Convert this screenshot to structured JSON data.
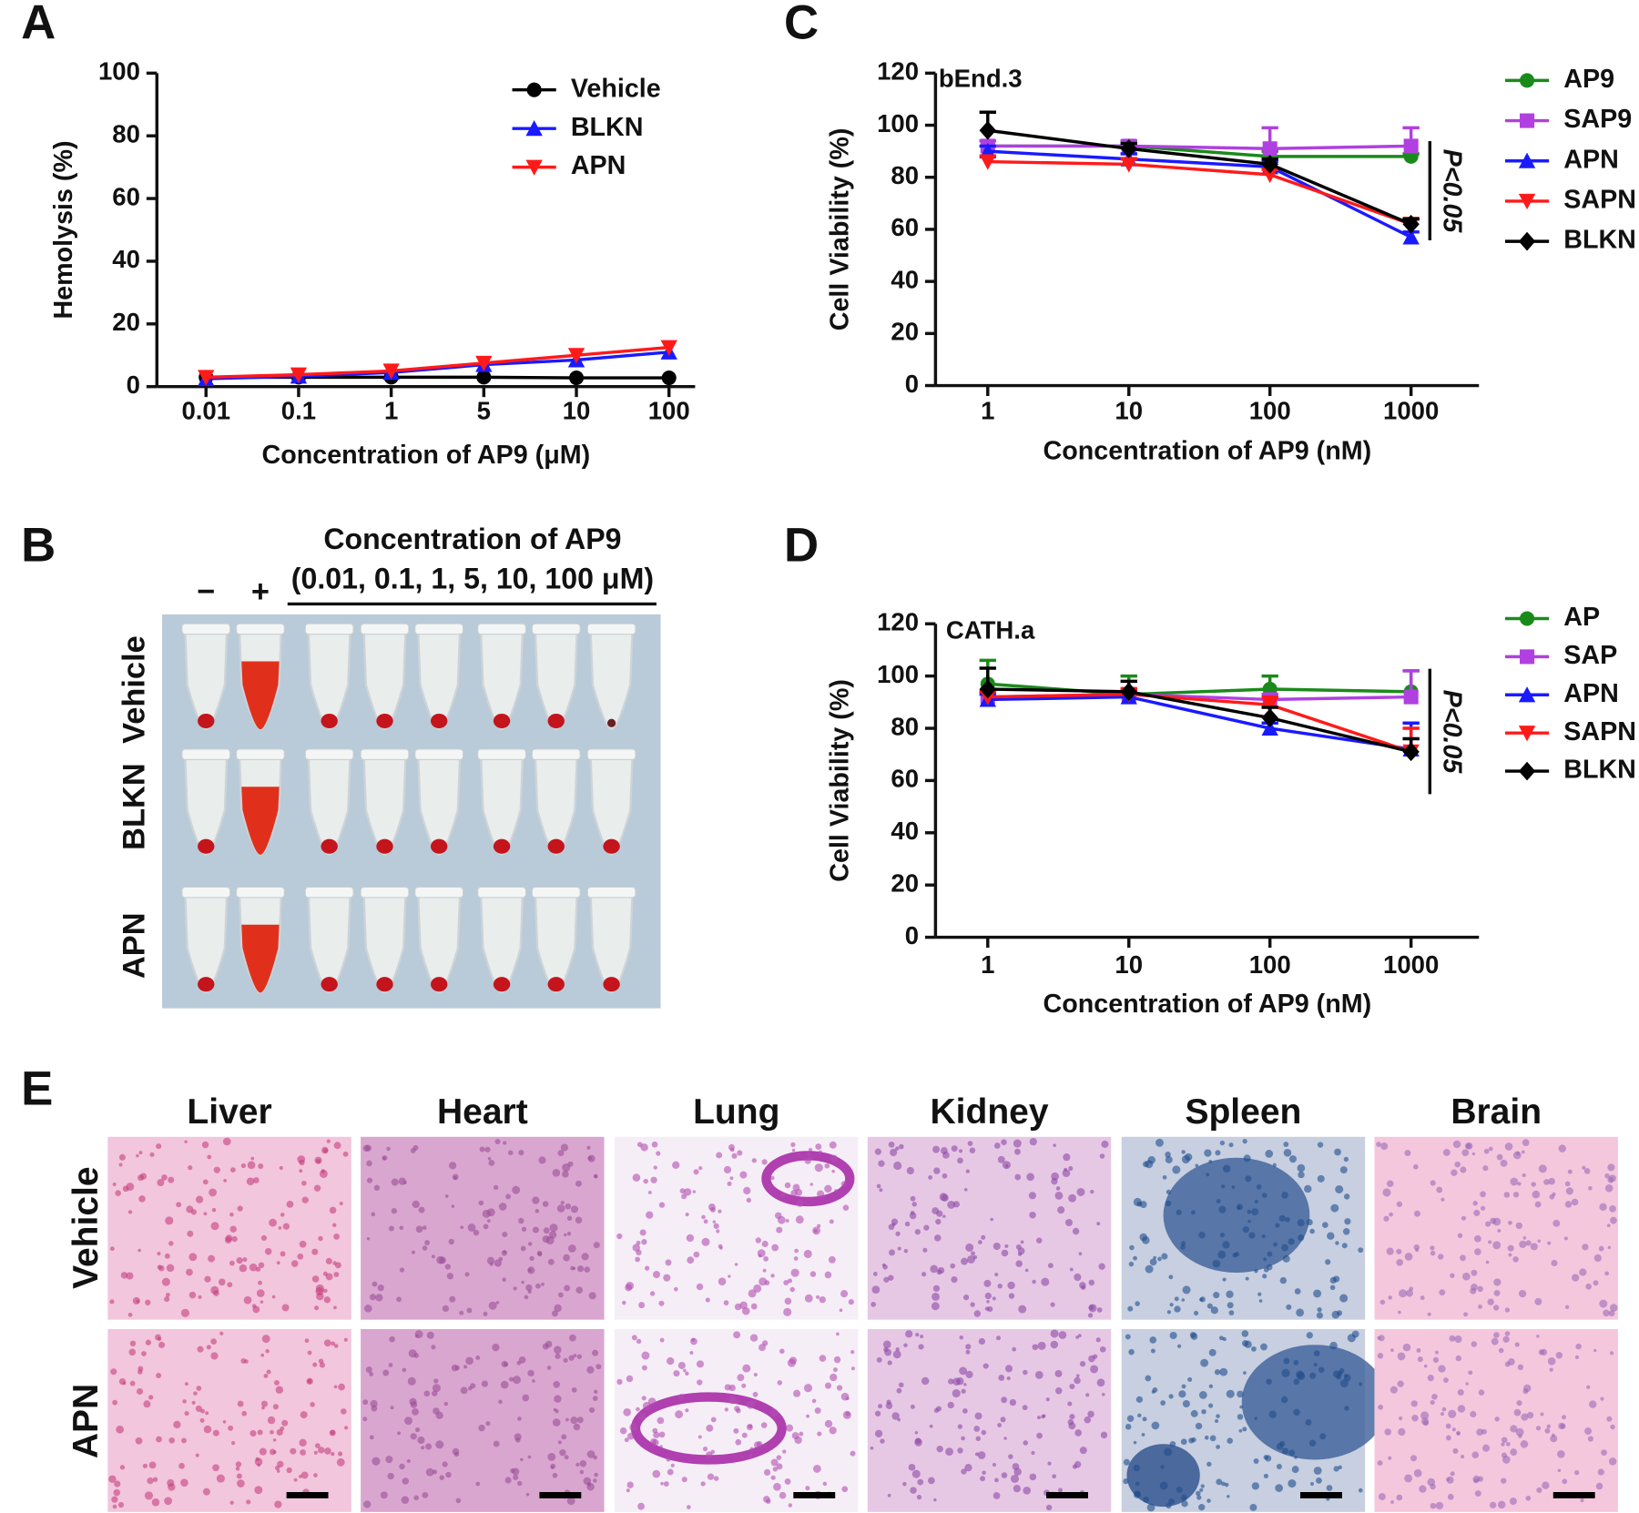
{
  "chart_data": [
    {
      "panel": "A",
      "type": "line",
      "y_label": "Hemolysis (%)",
      "x_label": "Concentration of AP9 (μM)",
      "categories": [
        "0.01",
        "0.1",
        "1",
        "5",
        "10",
        "100"
      ],
      "ylim": [
        0,
        100
      ],
      "yticks": [
        0,
        20,
        40,
        60,
        80,
        100
      ],
      "series": [
        {
          "name": "Vehicle",
          "color": "#000000",
          "marker": "circle",
          "values": [
            3,
            3,
            3,
            3,
            2.8,
            2.8
          ]
        },
        {
          "name": "BLKN",
          "color": "#1a1aff",
          "marker": "triangle-up",
          "values": [
            2.5,
            3.3,
            4.5,
            7,
            8.5,
            11
          ]
        },
        {
          "name": "APN",
          "color": "#ff1a1a",
          "marker": "triangle-down",
          "values": [
            3,
            3.8,
            5,
            7.5,
            10,
            12.5
          ]
        }
      ]
    },
    {
      "panel": "C",
      "type": "line",
      "annotation": "bEnd.3",
      "significance": "P<0.05",
      "y_label": "Cell Viability (%)",
      "x_label": "Concentration of AP9 (nM)",
      "categories": [
        "1",
        "10",
        "100",
        "1000"
      ],
      "ylim": [
        0,
        120
      ],
      "yticks": [
        0,
        20,
        40,
        60,
        80,
        100,
        120
      ],
      "series": [
        {
          "name": "AP9",
          "color": "#1a8a1a",
          "marker": "circle",
          "values": [
            92,
            92,
            88,
            88
          ],
          "errors": [
            2,
            2,
            2,
            1
          ]
        },
        {
          "name": "SAP9",
          "color": "#b040e0",
          "marker": "square",
          "values": [
            92,
            92,
            91,
            92
          ],
          "errors": [
            2,
            2,
            8,
            7
          ]
        },
        {
          "name": "APN",
          "color": "#1a1aff",
          "marker": "triangle-up",
          "values": [
            90,
            87,
            84,
            57
          ],
          "errors": [
            2,
            2,
            2,
            2
          ]
        },
        {
          "name": "SAPN",
          "color": "#ff1a1a",
          "marker": "triangle-down",
          "values": [
            86,
            85,
            81,
            62
          ],
          "errors": [
            2,
            2,
            2,
            2
          ]
        },
        {
          "name": "BLKN",
          "color": "#000000",
          "marker": "diamond",
          "values": [
            98,
            91,
            85,
            62
          ],
          "errors": [
            7,
            2,
            2,
            2
          ]
        }
      ]
    },
    {
      "panel": "D",
      "type": "line",
      "annotation": "CATH.a",
      "significance": "P<0.05",
      "y_label": "Cell Viability (%)",
      "x_label": "Concentration of AP9 (nM)",
      "categories": [
        "1",
        "10",
        "100",
        "1000"
      ],
      "ylim": [
        0,
        120
      ],
      "yticks": [
        0,
        20,
        40,
        60,
        80,
        100,
        120
      ],
      "series": [
        {
          "name": "AP",
          "color": "#1a8a1a",
          "marker": "circle",
          "values": [
            97,
            93,
            95,
            94
          ],
          "errors": [
            9,
            7,
            5,
            8
          ]
        },
        {
          "name": "SAP",
          "color": "#b040e0",
          "marker": "square",
          "values": [
            92,
            93,
            91,
            92
          ],
          "errors": [
            2,
            2,
            2,
            10
          ]
        },
        {
          "name": "APN",
          "color": "#1a1aff",
          "marker": "triangle-up",
          "values": [
            91,
            92,
            80,
            72
          ],
          "errors": [
            2,
            2,
            2,
            10
          ]
        },
        {
          "name": "SAPN",
          "color": "#ff1a1a",
          "marker": "triangle-down",
          "values": [
            92,
            93,
            89,
            71
          ],
          "errors": [
            2,
            2,
            3,
            9
          ]
        },
        {
          "name": "BLKN",
          "color": "#000000",
          "marker": "diamond",
          "values": [
            95,
            94,
            84,
            71
          ],
          "errors": [
            8,
            4,
            4,
            5
          ]
        }
      ]
    }
  ],
  "panel_b": {
    "panel": "B",
    "title": "Concentration of AP9",
    "subtitle": "(0.01, 0.1, 1, 5, 10, 100 μM)",
    "columns": [
      "−",
      "+"
    ],
    "rows": [
      "Vehicle",
      "BLKN",
      "APN"
    ]
  },
  "panel_e": {
    "panel": "E",
    "columns": [
      "Liver",
      "Heart",
      "Lung",
      "Kidney",
      "Spleen",
      "Brain"
    ],
    "rows": [
      "Vehicle",
      "APN"
    ]
  }
}
